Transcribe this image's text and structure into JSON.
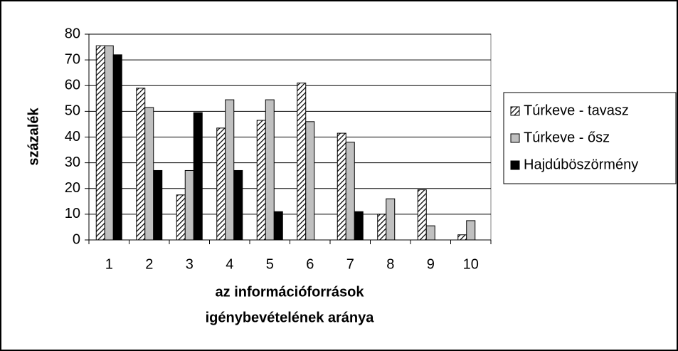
{
  "chart_data": {
    "type": "bar",
    "ylabel": "százalék",
    "xlabel": [
      "az információforrások",
      "igénybevételének aránya"
    ],
    "categories": [
      "1",
      "2",
      "3",
      "4",
      "5",
      "6",
      "7",
      "8",
      "9",
      "10"
    ],
    "series": [
      {
        "name": "Túrkeve - tavasz",
        "color": "#000000",
        "pattern": "diagonal-hatch",
        "values": [
          75.5,
          59,
          17.5,
          43.5,
          46.5,
          61,
          41.5,
          10,
          19.5,
          2
        ]
      },
      {
        "name": "Túrkeve - ősz",
        "color": "#c0c0c0",
        "values": [
          75.5,
          51.5,
          27,
          54.5,
          54.5,
          46,
          38,
          16,
          5.5,
          7.5
        ]
      },
      {
        "name": "Hajdúböszörmény",
        "color": "#000000",
        "values": [
          72,
          27,
          49.5,
          27,
          11,
          0,
          11,
          0,
          0,
          0
        ]
      }
    ],
    "ylim": [
      0,
      80
    ],
    "yticks": [
      0,
      10,
      20,
      30,
      40,
      50,
      60,
      70,
      80
    ],
    "grid": true,
    "legend": "right"
  }
}
